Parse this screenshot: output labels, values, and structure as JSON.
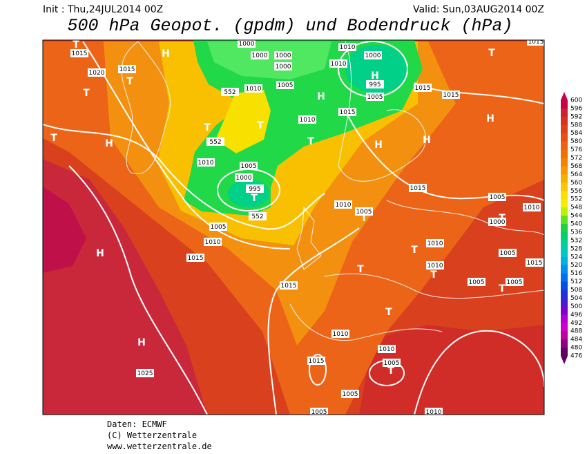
{
  "header": {
    "init": "Init : Thu,24JUL2014 00Z",
    "valid": "Valid: Sun,03AUG2014 00Z",
    "title": "500 hPa Geopot. (gpdm) und Bodendruck (hPa)"
  },
  "map": {
    "systems": [
      "T",
      "H",
      "T",
      "T",
      "H",
      "T",
      "T",
      "H",
      "T",
      "T",
      "H",
      "H",
      "T",
      "H",
      "T",
      "H",
      "T",
      "T",
      "T",
      "T",
      "T",
      "T",
      "H",
      "T",
      "H",
      "T"
    ],
    "isobar_labels": [
      "1015",
      "1020",
      "1015",
      "1000",
      "1000",
      "1000",
      "1000",
      "1010",
      "1005",
      "552",
      "1010",
      "1010",
      "1000",
      "995",
      "1005",
      "1015",
      "1015",
      "1015",
      "1010",
      "552",
      "1010",
      "1005",
      "1000",
      "995",
      "552",
      "1005",
      "1010",
      "1015",
      "1015",
      "1010",
      "1005",
      "1005",
      "1010",
      "1000",
      "1010",
      "1010",
      "1005",
      "1015",
      "1005",
      "1005",
      "1015",
      "1010",
      "1010",
      "1005",
      "1015",
      "1025",
      "1005",
      "1005",
      "1010",
      "1015"
    ]
  },
  "legend": {
    "labels": [
      600,
      596,
      592,
      588,
      584,
      580,
      576,
      572,
      568,
      564,
      560,
      556,
      552,
      548,
      544,
      540,
      536,
      532,
      528,
      524,
      520,
      516,
      512,
      508,
      504,
      500,
      496,
      492,
      488,
      484,
      480,
      476
    ]
  },
  "footer": [
    "Daten: ECMWF",
    "(C) Wetterzentrale",
    "www.wetterzentrale.de"
  ]
}
